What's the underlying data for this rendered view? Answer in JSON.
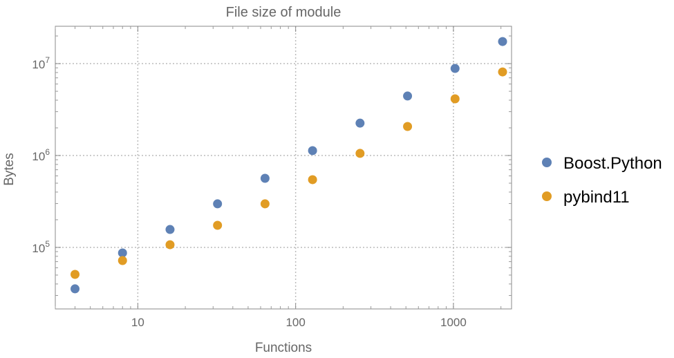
{
  "chart_data": {
    "type": "scatter",
    "title": "File size of module",
    "xlabel": "Functions",
    "ylabel": "Bytes",
    "x_scale": "log",
    "y_scale": "log",
    "xlim": [
      3.0,
      2335
    ],
    "ylim": [
      21400,
      25500000
    ],
    "grid": true,
    "legend_position": "right",
    "x_ticks": [
      {
        "value": 10,
        "label": "10"
      },
      {
        "value": 100,
        "label": "100"
      },
      {
        "value": 1000,
        "label": "1000"
      }
    ],
    "y_ticks": [
      {
        "value": 100000,
        "base": "10",
        "exp": "5"
      },
      {
        "value": 1000000,
        "base": "10",
        "exp": "6"
      },
      {
        "value": 10000000,
        "base": "10",
        "exp": "7"
      }
    ],
    "x": [
      4,
      8,
      16,
      32,
      64,
      128,
      256,
      512,
      1024,
      2048
    ],
    "series": [
      {
        "name": "Boost.Python",
        "color": "#5e81b5",
        "values": [
          35400,
          87100,
          156700,
          298000,
          565000,
          1130000,
          2250000,
          4440000,
          8860000,
          17400000
        ]
      },
      {
        "name": "pybind11",
        "color": "#e19c24",
        "values": [
          50900,
          71900,
          107000,
          174000,
          298000,
          546000,
          1055000,
          2070000,
          4140000,
          8120000
        ]
      }
    ]
  }
}
